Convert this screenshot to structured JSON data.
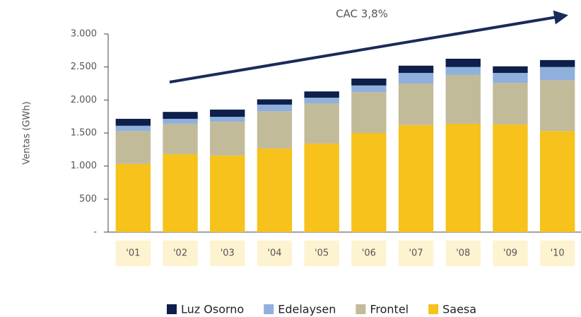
{
  "chart_data": {
    "type": "stacked_bar",
    "y_label": "Ventas (GWh)",
    "annotation": "CAC 3,8%",
    "categories": [
      "'01",
      "'02",
      "'03",
      "'04",
      "'05",
      "'06",
      "'07",
      "'08",
      "'09",
      "'10"
    ],
    "series": [
      {
        "name": "Saesa",
        "color": "#f6c21b",
        "values": [
          1030,
          1180,
          1160,
          1265,
          1340,
          1500,
          1620,
          1640,
          1630,
          1530
        ]
      },
      {
        "name": "Frontel",
        "color": "#c2bb9a",
        "values": [
          500,
          460,
          510,
          565,
          610,
          620,
          630,
          740,
          630,
          770
        ]
      },
      {
        "name": "Edelaysen",
        "color": "#8fb0dc",
        "values": [
          80,
          75,
          75,
          100,
          85,
          100,
          160,
          120,
          150,
          200
        ]
      },
      {
        "name": "Luz Osorno",
        "color": "#0d1f4a",
        "values": [
          105,
          105,
          110,
          80,
          95,
          105,
          110,
          125,
          100,
          105
        ]
      }
    ],
    "ylim": [
      0,
      3000
    ],
    "yticks": [
      {
        "value": 0,
        "label": "-"
      },
      500,
      {
        "value": 1000,
        "label": "1.000"
      },
      {
        "value": 1500,
        "label": "1.500"
      },
      {
        "value": 2000,
        "label": "2.000"
      },
      {
        "value": 2500,
        "label": "2.500"
      },
      {
        "value": 3000,
        "label": "3.000"
      }
    ],
    "legend": "bottom"
  }
}
